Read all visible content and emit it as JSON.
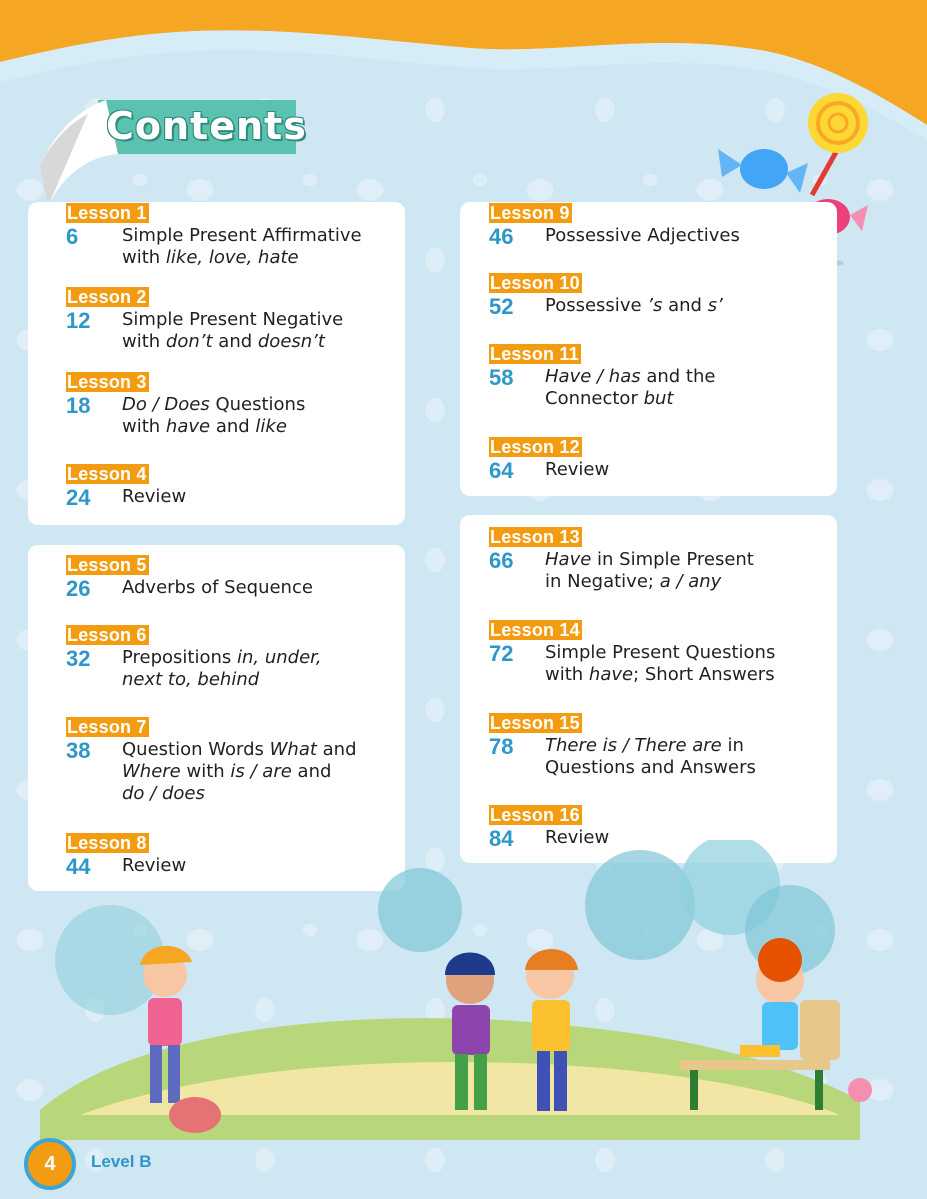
{
  "title": "Contents",
  "footer": {
    "page_number": "4",
    "level": "Level B"
  },
  "lessons": [
    {
      "label": "Lesson 1",
      "page": "6",
      "lines": [
        [
          "Simple Present Affirmative"
        ],
        [
          [
            "with ",
            false
          ],
          [
            "like, love, hate",
            true
          ]
        ]
      ]
    },
    {
      "label": "Lesson 2",
      "page": "12",
      "lines": [
        [
          "Simple Present Negative"
        ],
        [
          [
            "with ",
            false
          ],
          [
            "don’t",
            true
          ],
          [
            " and ",
            false
          ],
          [
            "doesn’t",
            true
          ]
        ]
      ]
    },
    {
      "label": "Lesson 3",
      "page": "18",
      "lines": [
        [
          [
            "Do / Does",
            true
          ],
          [
            " Questions",
            false
          ]
        ],
        [
          [
            "with ",
            false
          ],
          [
            "have",
            true
          ],
          [
            " and ",
            false
          ],
          [
            "like",
            true
          ]
        ]
      ]
    },
    {
      "label": "Lesson 4",
      "page": "24",
      "lines": [
        [
          "Review"
        ]
      ]
    },
    {
      "label": "Lesson 5",
      "page": "26",
      "lines": [
        [
          "Adverbs of Sequence"
        ]
      ]
    },
    {
      "label": "Lesson 6",
      "page": "32",
      "lines": [
        [
          [
            "Prepositions ",
            false
          ],
          [
            "in, under,",
            true
          ]
        ],
        [
          [
            "next to, behind",
            true
          ]
        ]
      ]
    },
    {
      "label": "Lesson 7",
      "page": "38",
      "lines": [
        [
          [
            "Question Words ",
            false
          ],
          [
            "What",
            true
          ],
          [
            " and",
            false
          ]
        ],
        [
          [
            "Where",
            true
          ],
          [
            " with ",
            false
          ],
          [
            "is / are",
            true
          ],
          [
            " and",
            false
          ]
        ],
        [
          [
            "do / does",
            true
          ]
        ]
      ]
    },
    {
      "label": "Lesson 8",
      "page": "44",
      "lines": [
        [
          "Review"
        ]
      ]
    },
    {
      "label": "Lesson 9",
      "page": "46",
      "lines": [
        [
          "Possessive Adjectives"
        ]
      ]
    },
    {
      "label": "Lesson 10",
      "page": "52",
      "lines": [
        [
          [
            "Possessive ",
            false
          ],
          [
            "’s",
            true
          ],
          [
            " and ",
            false
          ],
          [
            "s’",
            true
          ]
        ]
      ]
    },
    {
      "label": "Lesson 11",
      "page": "58",
      "lines": [
        [
          [
            "Have / has",
            true
          ],
          [
            " and the",
            false
          ]
        ],
        [
          [
            "Connector ",
            false
          ],
          [
            "but",
            true
          ]
        ]
      ]
    },
    {
      "label": "Lesson 12",
      "page": "64",
      "lines": [
        [
          "Review"
        ]
      ]
    },
    {
      "label": "Lesson 13",
      "page": "66",
      "lines": [
        [
          [
            "Have",
            true
          ],
          [
            " in Simple Present",
            false
          ]
        ],
        [
          [
            "in Negative; ",
            false
          ],
          [
            "a / any",
            true
          ]
        ]
      ]
    },
    {
      "label": "Lesson 14",
      "page": "72",
      "lines": [
        [
          "Simple Present Questions"
        ],
        [
          [
            "with ",
            false
          ],
          [
            "have",
            true
          ],
          [
            "; Short Answers",
            false
          ]
        ]
      ]
    },
    {
      "label": "Lesson 15",
      "page": "78",
      "lines": [
        [
          [
            "There is / There are",
            true
          ],
          [
            " in",
            false
          ]
        ],
        [
          "Questions and Answers"
        ]
      ]
    },
    {
      "label": "Lesson 16",
      "page": "84",
      "lines": [
        [
          "Review"
        ]
      ]
    }
  ],
  "colors": {
    "label_bg": "#f39c12",
    "page_num": "#2e97c9",
    "title_bg": "#5cc2b0"
  }
}
